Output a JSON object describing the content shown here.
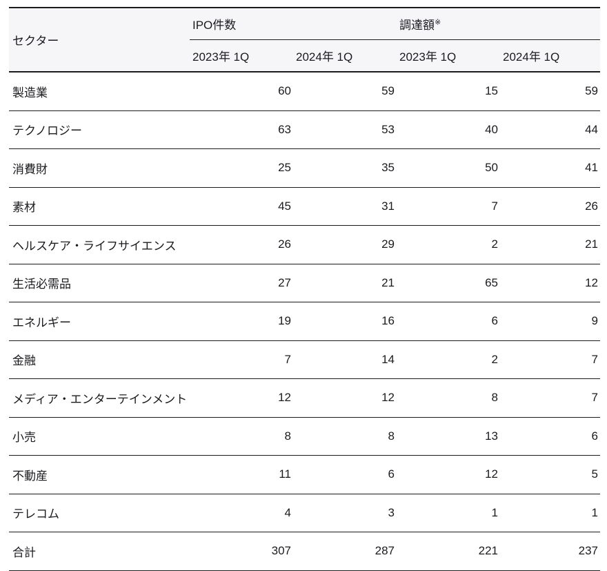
{
  "table": {
    "sector_header": "セクター",
    "group_headers": [
      {
        "label": "IPO件数",
        "note": ""
      },
      {
        "label": "調達額",
        "note": "※"
      }
    ],
    "sub_headers": [
      "2023年 1Q",
      "2024年 1Q",
      "2023年 1Q",
      "2024年 1Q"
    ],
    "rows": [
      {
        "sector": "製造業",
        "values": [
          "60",
          "59",
          "15",
          "59"
        ]
      },
      {
        "sector": "テクノロジー",
        "values": [
          "63",
          "53",
          "40",
          "44"
        ]
      },
      {
        "sector": "消費財",
        "values": [
          "25",
          "35",
          "50",
          "41"
        ]
      },
      {
        "sector": "素材",
        "values": [
          "45",
          "31",
          "7",
          "26"
        ]
      },
      {
        "sector": "ヘルスケア・ライフサイエンス",
        "values": [
          "26",
          "29",
          "2",
          "21"
        ]
      },
      {
        "sector": "生活必需品",
        "values": [
          "27",
          "21",
          "65",
          "12"
        ]
      },
      {
        "sector": "エネルギー",
        "values": [
          "19",
          "16",
          "6",
          "9"
        ]
      },
      {
        "sector": "金融",
        "values": [
          "7",
          "14",
          "2",
          "7"
        ]
      },
      {
        "sector": "メディア・エンターテインメント",
        "values": [
          "12",
          "12",
          "8",
          "7"
        ]
      },
      {
        "sector": "小売",
        "values": [
          "8",
          "8",
          "13",
          "6"
        ]
      },
      {
        "sector": "不動産",
        "values": [
          "11",
          "6",
          "12",
          "5"
        ]
      },
      {
        "sector": "テレコム",
        "values": [
          "4",
          "3",
          "1",
          "1"
        ]
      },
      {
        "sector": "合計",
        "values": [
          "307",
          "287",
          "221",
          "237"
        ]
      }
    ],
    "colors": {
      "header_bg": "#f6f6f8",
      "text": "#1b1b1f",
      "border": "#1a1a1a"
    }
  },
  "chart_data": {
    "type": "table",
    "title": "",
    "columns": [
      "セクター",
      "IPO件数 2023年 1Q",
      "IPO件数 2024年 1Q",
      "調達額※ 2023年 1Q",
      "調達額※ 2024年 1Q"
    ],
    "rows": [
      [
        "製造業",
        60,
        59,
        15,
        59
      ],
      [
        "テクノロジー",
        63,
        53,
        40,
        44
      ],
      [
        "消費財",
        25,
        35,
        50,
        41
      ],
      [
        "素材",
        45,
        31,
        7,
        26
      ],
      [
        "ヘルスケア・ライフサイエンス",
        26,
        29,
        2,
        21
      ],
      [
        "生活必需品",
        27,
        21,
        65,
        12
      ],
      [
        "エネルギー",
        19,
        16,
        6,
        9
      ],
      [
        "金融",
        7,
        14,
        2,
        7
      ],
      [
        "メディア・エンターテインメント",
        12,
        12,
        8,
        7
      ],
      [
        "小売",
        8,
        8,
        13,
        6
      ],
      [
        "不動産",
        11,
        6,
        12,
        5
      ],
      [
        "テレコム",
        4,
        3,
        1,
        1
      ],
      [
        "合計",
        307,
        287,
        221,
        237
      ]
    ]
  }
}
